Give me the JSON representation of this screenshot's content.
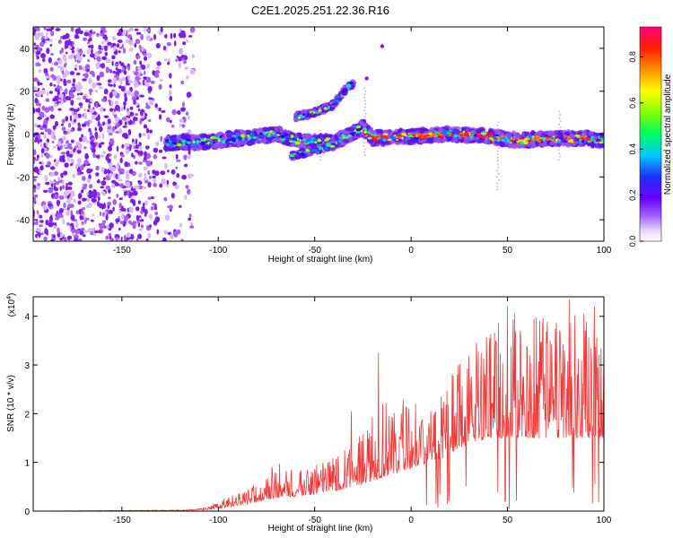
{
  "figure_title": "C2E1.2025.251.22.36.R16",
  "chart_data": [
    {
      "type": "heatmap",
      "title": "C2E1.2025.251.22.36.R16",
      "xlabel": "Height of straight line (km)",
      "ylabel": "Frequency (Hz)",
      "xlim": [
        -196,
        100
      ],
      "ylim": [
        -50,
        50
      ],
      "xticks": [
        -150,
        -100,
        -50,
        0,
        50,
        100
      ],
      "yticks": [
        -40,
        -20,
        0,
        20,
        40
      ],
      "colorbar": {
        "label": "Normalized spectral amplitude",
        "range": [
          0,
          0.93
        ],
        "ticks": [
          0.0,
          0.2,
          0.4,
          0.6,
          0.8
        ]
      },
      "features": {
        "noise_region_x": [
          -196,
          -113
        ],
        "main_band": [
          {
            "x": -127,
            "y": -4
          },
          {
            "x": -110,
            "y": -4
          },
          {
            "x": -90,
            "y": -2
          },
          {
            "x": -70,
            "y": 0
          },
          {
            "x": -60,
            "y": -3
          },
          {
            "x": -40,
            "y": -4
          },
          {
            "x": -25,
            "y": 3
          },
          {
            "x": -20,
            "y": -2
          },
          {
            "x": 0,
            "y": -1
          },
          {
            "x": 20,
            "y": 0
          },
          {
            "x": 40,
            "y": -1
          },
          {
            "x": 55,
            "y": -3
          },
          {
            "x": 70,
            "y": -2
          },
          {
            "x": 90,
            "y": -2
          },
          {
            "x": 100,
            "y": -3
          }
        ],
        "upper_branch": [
          {
            "x": -60,
            "y": 8
          },
          {
            "x": -50,
            "y": 10
          },
          {
            "x": -40,
            "y": 14
          },
          {
            "x": -35,
            "y": 20
          },
          {
            "x": -30,
            "y": 24
          }
        ],
        "lower_branch": [
          {
            "x": -62,
            "y": -10
          },
          {
            "x": -52,
            "y": -8
          },
          {
            "x": -40,
            "y": -5
          }
        ],
        "isolated_points": [
          {
            "x": -15,
            "y": 41
          },
          {
            "x": -23,
            "y": 26
          }
        ]
      }
    },
    {
      "type": "line",
      "xlabel": "Height of straight line (km)",
      "ylabel": "SNR (10 * v/v)",
      "y_multiplier": "(x10",
      "y_multiplier_exp": "4",
      "y_multiplier_close": ")",
      "xlim": [
        -196,
        100
      ],
      "ylim": [
        0,
        4.4
      ],
      "xticks": [
        -150,
        -100,
        -50,
        0,
        50,
        100
      ],
      "yticks": [
        0,
        1,
        2,
        3,
        4
      ],
      "series": [
        {
          "name": "SNR",
          "color": "#ee3a3a",
          "envelope": [
            {
              "x": -196,
              "base": 0.0,
              "peak": 0.0
            },
            {
              "x": -115,
              "base": 0.01,
              "peak": 0.03
            },
            {
              "x": -105,
              "base": 0.03,
              "peak": 0.1
            },
            {
              "x": -95,
              "base": 0.08,
              "peak": 0.3
            },
            {
              "x": -80,
              "base": 0.18,
              "peak": 0.6
            },
            {
              "x": -70,
              "base": 0.28,
              "peak": 1.0
            },
            {
              "x": -60,
              "base": 0.3,
              "peak": 0.85
            },
            {
              "x": -45,
              "base": 0.35,
              "peak": 1.0
            },
            {
              "x": -30,
              "base": 0.5,
              "peak": 1.4
            },
            {
              "x": -18,
              "base": 0.65,
              "peak": 2.2
            },
            {
              "x": -5,
              "base": 0.8,
              "peak": 2.3
            },
            {
              "x": 5,
              "base": 0.95,
              "peak": 2.2
            },
            {
              "x": 15,
              "base": 1.05,
              "peak": 2.5
            },
            {
              "x": 25,
              "base": 1.3,
              "peak": 3.2
            },
            {
              "x": 40,
              "base": 1.5,
              "peak": 3.8
            },
            {
              "x": 55,
              "base": 1.5,
              "peak": 4.1
            },
            {
              "x": 70,
              "base": 1.5,
              "peak": 4.0
            },
            {
              "x": 85,
              "base": 1.5,
              "peak": 4.3
            },
            {
              "x": 100,
              "base": 1.5,
              "peak": 4.0
            }
          ],
          "spikes": [
            {
              "x": -17,
              "value": 3.25
            },
            {
              "x": -31,
              "value": 2.05
            },
            {
              "x": -49,
              "value": 0.95
            },
            {
              "x": -62,
              "value": 0.85
            },
            {
              "x": 50,
              "value": 4.2
            },
            {
              "x": 82,
              "value": 4.35
            },
            {
              "x": 95,
              "value": 4.2
            },
            {
              "x": 8,
              "value": 0.12
            },
            {
              "x": 51,
              "value": 0.05
            }
          ]
        }
      ]
    }
  ]
}
